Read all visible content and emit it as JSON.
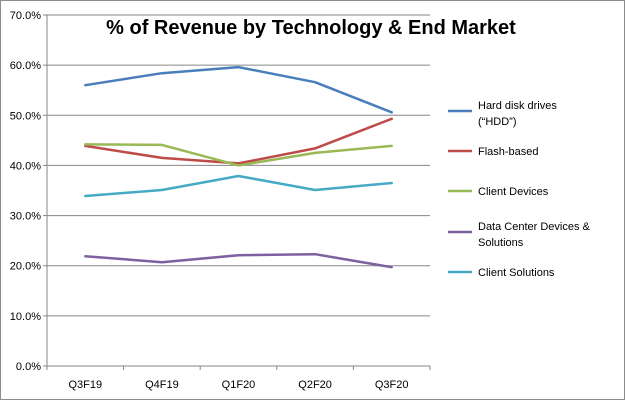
{
  "chart_data": {
    "type": "line",
    "title": "% of Revenue by Technology & End Market",
    "categories": [
      "Q3F19",
      "Q4F19",
      "Q1F20",
      "Q2F20",
      "Q3F20"
    ],
    "ylim": [
      0,
      70
    ],
    "y_ticks": [
      0,
      10,
      20,
      30,
      40,
      50,
      60,
      70
    ],
    "y_tick_labels": [
      "0.0%",
      "10.0%",
      "20.0%",
      "30.0%",
      "40.0%",
      "50.0%",
      "60.0%",
      "70.0%"
    ],
    "grid": true,
    "legend_position": "right",
    "series": [
      {
        "name": "Hard disk drives (“HDD”)",
        "color": "#4a7ebb",
        "values": [
          56.0,
          58.4,
          59.6,
          56.6,
          50.6
        ]
      },
      {
        "name": "Flash-based",
        "color": "#be4b48",
        "values": [
          43.9,
          41.5,
          40.4,
          43.4,
          49.3
        ]
      },
      {
        "name": "Client Devices",
        "color": "#98b954",
        "values": [
          44.2,
          44.1,
          40.0,
          42.5,
          43.9
        ]
      },
      {
        "name": "Data Center Devices & Solutions",
        "color": "#7d60a0",
        "values": [
          21.9,
          20.7,
          22.1,
          22.3,
          19.7
        ]
      },
      {
        "name": "Client Solutions",
        "color": "#46aac4",
        "values": [
          33.9,
          35.1,
          37.9,
          35.1,
          36.5
        ]
      }
    ]
  }
}
